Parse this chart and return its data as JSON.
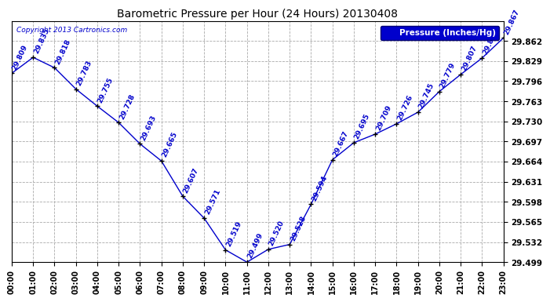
{
  "title": "Barometric Pressure per Hour (24 Hours) 20130408",
  "ylabel": "Pressure (Inches/Hg)",
  "copyright": "Copyright 2013 Cartronics.com",
  "hours": [
    0,
    1,
    2,
    3,
    4,
    5,
    6,
    7,
    8,
    9,
    10,
    11,
    12,
    13,
    14,
    15,
    16,
    17,
    18,
    19,
    20,
    21,
    22,
    23
  ],
  "values": [
    29.809,
    29.835,
    29.818,
    29.783,
    29.755,
    29.728,
    29.693,
    29.665,
    29.607,
    29.571,
    29.519,
    29.499,
    29.52,
    29.528,
    29.594,
    29.667,
    29.695,
    29.709,
    29.726,
    29.745,
    29.779,
    29.807,
    29.834,
    29.867
  ],
  "ylim_min": 29.499,
  "ylim_max": 29.894,
  "ytick_step": 0.033,
  "line_color": "#0000cc",
  "marker_color": "#000000",
  "bg_color": "#ffffff",
  "grid_color": "#aaaaaa",
  "title_color": "#000000",
  "label_color": "#0000cc",
  "legend_bg": "#0000cc",
  "legend_text": "#ffffff",
  "figwidth": 6.9,
  "figheight": 3.75,
  "dpi": 100
}
